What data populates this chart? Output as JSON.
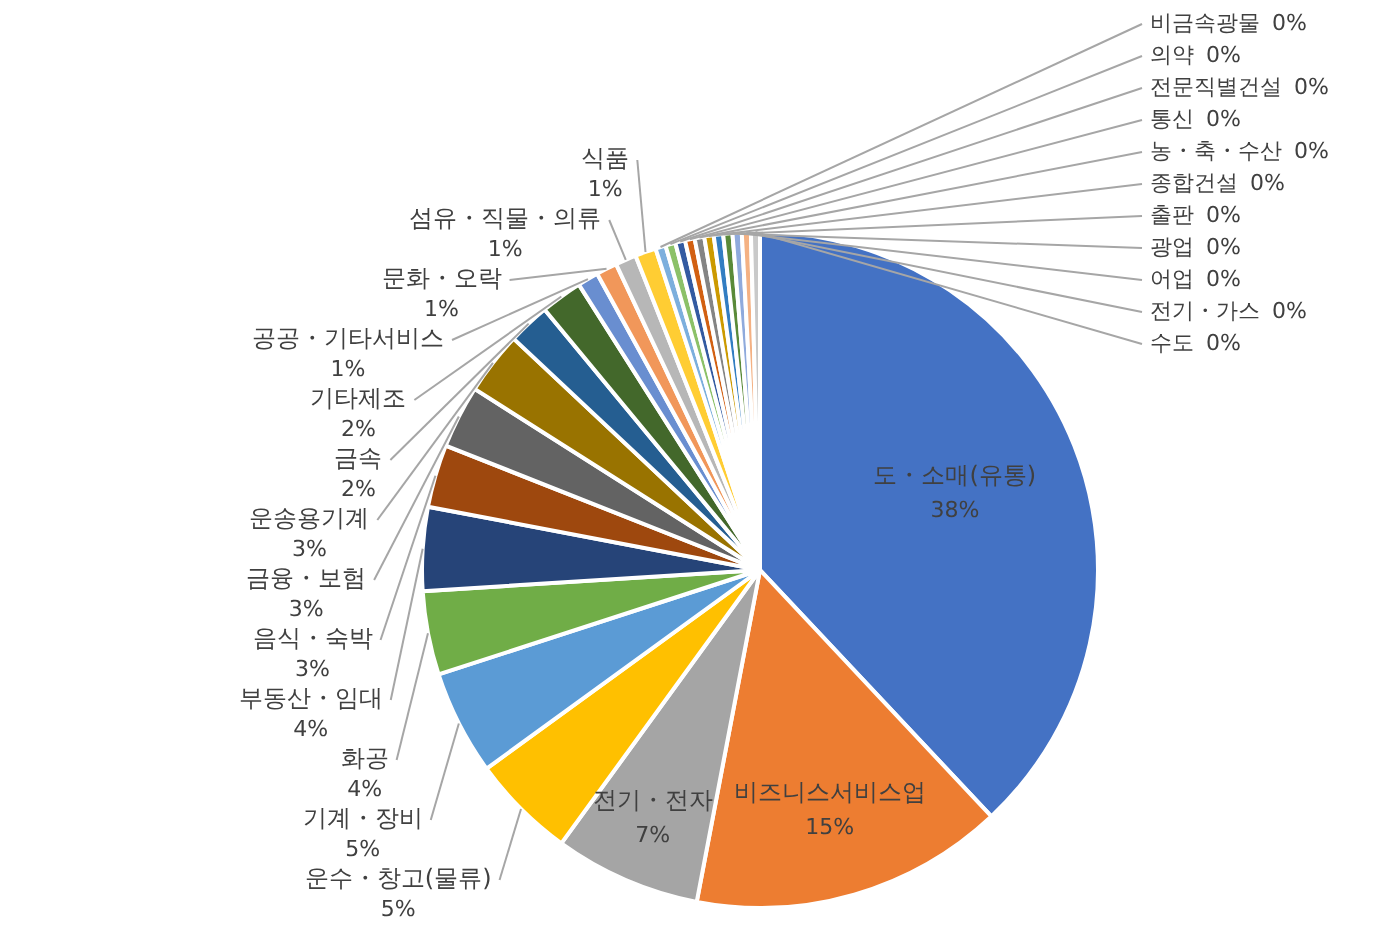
{
  "chart_data": {
    "type": "pie",
    "categories": [
      "도・소매(유통)",
      "비즈니스서비스업",
      "전기・전자",
      "운수・창고(물류)",
      "기계・장비",
      "화공",
      "부동산・임대",
      "음식・숙박",
      "금융・보험",
      "운송용기계",
      "금속",
      "기타제조",
      "공공・기타서비스",
      "문화・오락",
      "섬유・직물・의류",
      "식품",
      "비금속광물",
      "의약",
      "전문직별건설",
      "통신",
      "농・축・수산",
      "종합건설",
      "출판",
      "광업",
      "어업",
      "전기・가스",
      "수도"
    ],
    "values": [
      38,
      15,
      7,
      5,
      5,
      4,
      4,
      3,
      3,
      3,
      2,
      2,
      1,
      1,
      1,
      1,
      0.49,
      0.48,
      0.47,
      0.46,
      0.46,
      0.45,
      0.45,
      0.44,
      0.44,
      0.43,
      0.43
    ],
    "value_labels": [
      "38%",
      "15%",
      "7%",
      "5%",
      "5%",
      "4%",
      "4%",
      "3%",
      "3%",
      "3%",
      "2%",
      "2%",
      "1%",
      "1%",
      "1%",
      "1%",
      "0%",
      "0%",
      "0%",
      "0%",
      "0%",
      "0%",
      "0%",
      "0%",
      "0%",
      "0%",
      "0%"
    ],
    "colors": [
      "#4472c4",
      "#ed7d31",
      "#a5a5a5",
      "#ffc000",
      "#5b9bd5",
      "#70ad47",
      "#264478",
      "#9e480e",
      "#636363",
      "#997300",
      "#255e91",
      "#43682b",
      "#698ed0",
      "#f1975a",
      "#b7b7b7",
      "#ffcd33",
      "#7cafdd",
      "#8cc168",
      "#335aa1",
      "#d26012",
      "#848484",
      "#cc9a00",
      "#327dc2",
      "#5a8a39",
      "#8faadc",
      "#f4b183",
      "#c9c9c9"
    ],
    "legend": false
  }
}
